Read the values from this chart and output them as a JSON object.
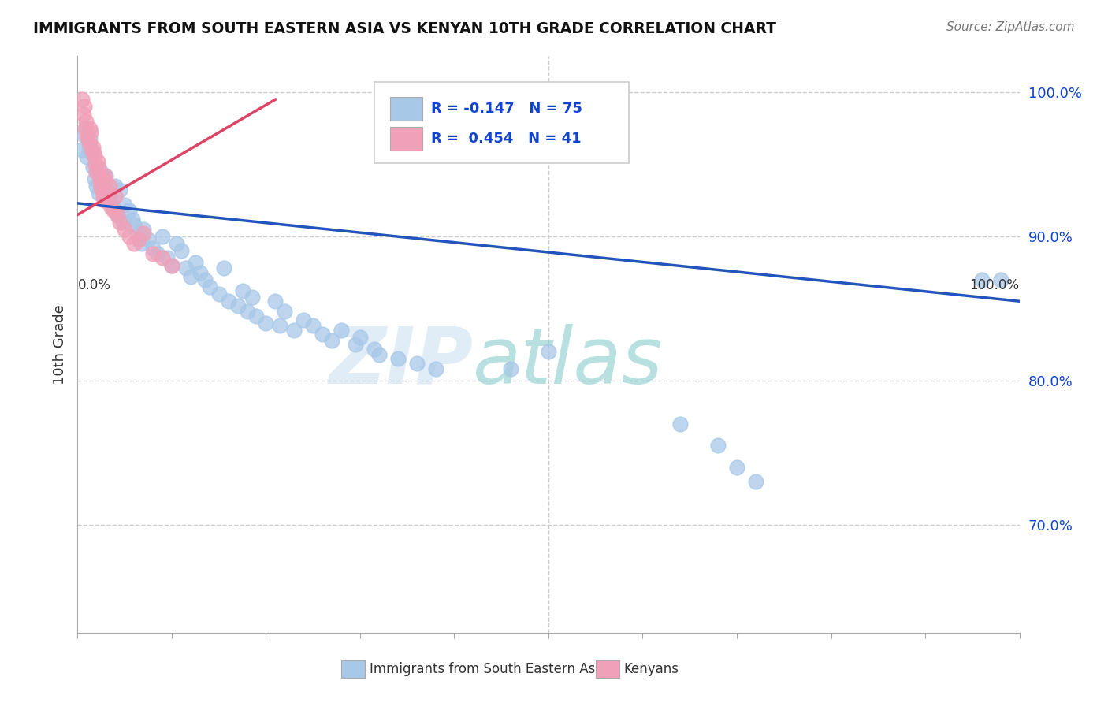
{
  "title": "IMMIGRANTS FROM SOUTH EASTERN ASIA VS KENYAN 10TH GRADE CORRELATION CHART",
  "source": "Source: ZipAtlas.com",
  "ylabel": "10th Grade",
  "r_blue": -0.147,
  "n_blue": 75,
  "r_pink": 0.454,
  "n_pink": 41,
  "blue_color": "#a8c8e8",
  "pink_color": "#f0a0b8",
  "blue_line_color": "#2255bb",
  "pink_line_color": "#dd4466",
  "legend_text_color": "#1144cc",
  "watermark_zip": "ZIP",
  "watermark_atlas": "atlas",
  "ylim": [
    0.625,
    1.025
  ],
  "xlim": [
    0.0,
    1.0
  ],
  "blue_line_x0": 0.0,
  "blue_line_y0": 0.923,
  "blue_line_x1": 1.0,
  "blue_line_y1": 0.855,
  "pink_line_x0": 0.0,
  "pink_line_y0": 0.915,
  "pink_line_x1": 0.21,
  "pink_line_y1": 0.995,
  "blue_scatter_x": [
    0.005,
    0.007,
    0.009,
    0.01,
    0.012,
    0.013,
    0.015,
    0.016,
    0.018,
    0.02,
    0.022,
    0.025,
    0.028,
    0.03,
    0.032,
    0.035,
    0.038,
    0.04,
    0.042,
    0.045,
    0.048,
    0.05,
    0.055,
    0.058,
    0.06,
    0.065,
    0.068,
    0.07,
    0.075,
    0.08,
    0.085,
    0.09,
    0.095,
    0.1,
    0.105,
    0.11,
    0.115,
    0.12,
    0.125,
    0.13,
    0.135,
    0.14,
    0.15,
    0.155,
    0.16,
    0.17,
    0.175,
    0.18,
    0.185,
    0.19,
    0.2,
    0.21,
    0.215,
    0.22,
    0.23,
    0.24,
    0.25,
    0.26,
    0.27,
    0.28,
    0.295,
    0.3,
    0.315,
    0.32,
    0.34,
    0.36,
    0.38,
    0.46,
    0.5,
    0.64,
    0.68,
    0.7,
    0.72,
    0.96,
    0.98
  ],
  "blue_scatter_y": [
    0.96,
    0.97,
    0.975,
    0.955,
    0.962,
    0.968,
    0.958,
    0.948,
    0.94,
    0.935,
    0.93,
    0.945,
    0.938,
    0.942,
    0.928,
    0.925,
    0.92,
    0.935,
    0.915,
    0.932,
    0.91,
    0.922,
    0.918,
    0.912,
    0.908,
    0.902,
    0.895,
    0.905,
    0.898,
    0.892,
    0.888,
    0.9,
    0.885,
    0.88,
    0.895,
    0.89,
    0.878,
    0.872,
    0.882,
    0.875,
    0.87,
    0.865,
    0.86,
    0.878,
    0.855,
    0.852,
    0.862,
    0.848,
    0.858,
    0.845,
    0.84,
    0.855,
    0.838,
    0.848,
    0.835,
    0.842,
    0.838,
    0.832,
    0.828,
    0.835,
    0.825,
    0.83,
    0.822,
    0.818,
    0.815,
    0.812,
    0.808,
    0.808,
    0.82,
    0.77,
    0.755,
    0.74,
    0.73,
    0.87,
    0.87
  ],
  "pink_scatter_x": [
    0.005,
    0.006,
    0.007,
    0.008,
    0.009,
    0.01,
    0.011,
    0.012,
    0.013,
    0.014,
    0.015,
    0.016,
    0.017,
    0.018,
    0.019,
    0.02,
    0.021,
    0.022,
    0.023,
    0.024,
    0.025,
    0.026,
    0.027,
    0.028,
    0.029,
    0.03,
    0.032,
    0.034,
    0.036,
    0.038,
    0.04,
    0.042,
    0.045,
    0.05,
    0.055,
    0.06,
    0.065,
    0.07,
    0.08,
    0.09,
    0.1
  ],
  "pink_scatter_y": [
    0.995,
    0.985,
    0.99,
    0.975,
    0.98,
    0.97,
    0.968,
    0.965,
    0.975,
    0.972,
    0.96,
    0.962,
    0.958,
    0.955,
    0.95,
    0.945,
    0.952,
    0.948,
    0.942,
    0.938,
    0.935,
    0.932,
    0.928,
    0.925,
    0.942,
    0.938,
    0.93,
    0.935,
    0.92,
    0.918,
    0.928,
    0.915,
    0.91,
    0.905,
    0.9,
    0.895,
    0.898,
    0.902,
    0.888,
    0.885,
    0.88
  ]
}
